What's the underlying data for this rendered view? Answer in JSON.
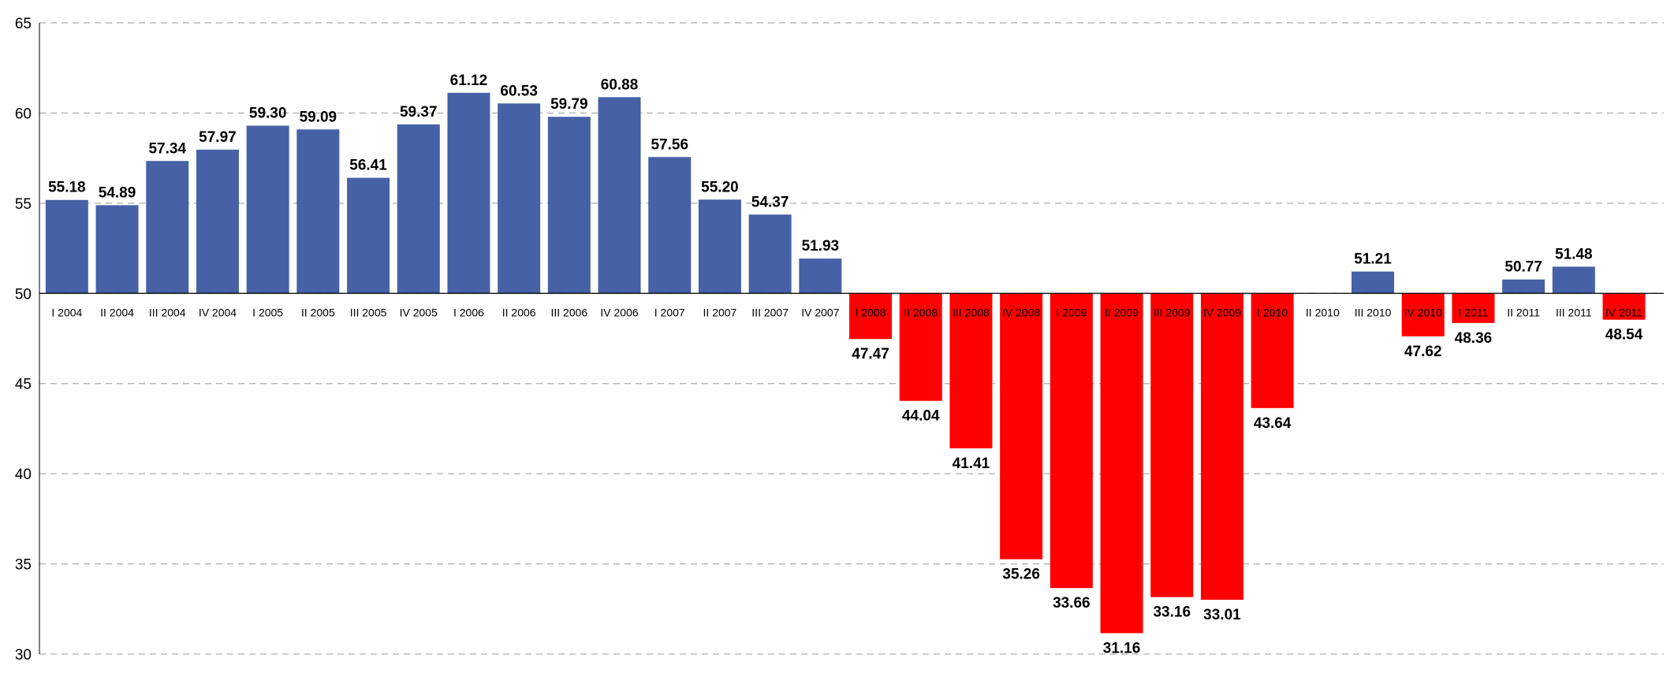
{
  "chart_data": {
    "type": "bar",
    "title": "",
    "xlabel": "",
    "ylabel": "",
    "ylim": [
      30,
      65
    ],
    "yticks": [
      "30",
      "35",
      "40",
      "45",
      "50",
      "55",
      "60",
      "65"
    ],
    "baseline": 50,
    "grid": true,
    "legend": "none",
    "colors": {
      "above": "#4661A5",
      "below": "#FF0000"
    },
    "categories": [
      "I 2004",
      "II 2004",
      "III 2004",
      "IV 2004",
      "I 2005",
      "II 2005",
      "III 2005",
      "IV 2005",
      "I 2006",
      "II 2006",
      "III 2006",
      "IV 2006",
      "I 2007",
      "II 2007",
      "III 2007",
      "IV 2007",
      "I 2008",
      "II 2008",
      "III 2008",
      "IV 2008",
      "I 2009",
      "II 2009",
      "III 2009",
      "IV 2009",
      "I 2010",
      "II 2010",
      "III 2010",
      "IV 2010",
      "I 2011",
      "II 2011",
      "III 2011",
      "IV 2011"
    ],
    "values": [
      55.18,
      54.89,
      57.34,
      57.97,
      59.3,
      59.09,
      56.41,
      59.37,
      61.12,
      60.53,
      59.79,
      60.88,
      57.56,
      55.2,
      54.37,
      51.93,
      47.47,
      44.04,
      41.41,
      35.26,
      33.66,
      31.16,
      33.16,
      33.01,
      43.64,
      null,
      51.21,
      47.62,
      48.36,
      50.77,
      51.48,
      48.54
    ],
    "value_labels": [
      "55.18",
      "54.89",
      "57.34",
      "57.97",
      "59.30",
      "59.09",
      "56.41",
      "59.37",
      "61.12",
      "60.53",
      "59.79",
      "60.88",
      "57.56",
      "55.20",
      "54.37",
      "51.93",
      "47.47",
      "44.04",
      "41.41",
      "35.26",
      "33.66",
      "31.16",
      "33.16",
      "33.01",
      "43.64",
      "",
      "51.21",
      "47.62",
      "48.36",
      "50.77",
      "51.48",
      "48.54"
    ]
  }
}
